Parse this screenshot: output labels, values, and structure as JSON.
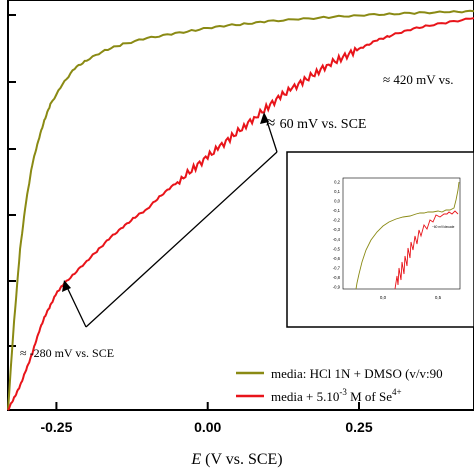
{
  "chart_data": {
    "type": "line",
    "xlabel_italic": "E",
    "xlabel_rest": " (V vs. SCE)",
    "xlim": [
      -0.33,
      0.44
    ],
    "xticks": [
      {
        "value": -0.25,
        "label": "-0.25"
      },
      {
        "value": 0.0,
        "label": "0.00"
      },
      {
        "value": 0.25,
        "label": "0.25"
      }
    ],
    "series": [
      {
        "name": "media: HCl 1N + DMSO (v/v:90",
        "color": "#8a8a14",
        "x": [
          -0.33,
          -0.32,
          -0.31,
          -0.3,
          -0.29,
          -0.28,
          -0.27,
          -0.26,
          -0.24,
          -0.22,
          -0.2,
          -0.17,
          -0.14,
          -0.1,
          -0.06,
          -0.02,
          0.02,
          0.06,
          0.1,
          0.15,
          0.2,
          0.25,
          0.3,
          0.35,
          0.4,
          0.44
        ],
        "y": [
          0.0,
          0.22,
          0.4,
          0.52,
          0.61,
          0.67,
          0.72,
          0.76,
          0.81,
          0.85,
          0.87,
          0.895,
          0.91,
          0.925,
          0.935,
          0.945,
          0.955,
          0.96,
          0.967,
          0.972,
          0.977,
          0.982,
          0.985,
          0.988,
          0.99,
          0.992
        ]
      },
      {
        "name": "media + 5.10",
        "name_sup": "-3",
        "name_rest": " M of Se",
        "name_sup2": "4+",
        "color": "#e8141a",
        "x": [
          -0.33,
          -0.32,
          -0.31,
          -0.3,
          -0.29,
          -0.28,
          -0.27,
          -0.26,
          -0.25,
          -0.24,
          -0.22,
          -0.2,
          -0.18,
          -0.16,
          -0.14,
          -0.12,
          -0.1,
          -0.08,
          -0.06,
          -0.04,
          -0.02,
          0.0,
          0.02,
          0.04,
          0.06,
          0.08,
          0.1,
          0.12,
          0.14,
          0.16,
          0.18,
          0.2,
          0.22,
          0.24,
          0.26,
          0.28,
          0.3,
          0.33,
          0.36,
          0.4,
          0.44
        ],
        "y": [
          0.0,
          0.03,
          0.06,
          0.1,
          0.14,
          0.19,
          0.23,
          0.26,
          0.29,
          0.31,
          0.34,
          0.37,
          0.4,
          0.43,
          0.455,
          0.48,
          0.5,
          0.53,
          0.555,
          0.58,
          0.605,
          0.63,
          0.655,
          0.68,
          0.705,
          0.73,
          0.755,
          0.78,
          0.8,
          0.82,
          0.84,
          0.86,
          0.875,
          0.89,
          0.905,
          0.92,
          0.93,
          0.945,
          0.955,
          0.965,
          0.975
        ]
      }
    ],
    "annotations": [
      {
        "prefix": "≈ ",
        "text": "420 mV vs."
      },
      {
        "prefix": "≈ ",
        "text": "60  mV vs. SCE"
      },
      {
        "prefix": "≈ ",
        "text": "-280  mV vs. SCE"
      }
    ],
    "inset": {
      "yticks": [
        "0,2",
        "0,1",
        "0,0",
        "-0,1",
        "-0,2",
        "-0,3",
        "-0,4",
        "-0,5",
        "-0,6",
        "-0,7",
        "-0,8",
        "-0,9"
      ],
      "xticks": [
        "0,0",
        "0,5"
      ],
      "note": "~60 mV/decade"
    }
  }
}
